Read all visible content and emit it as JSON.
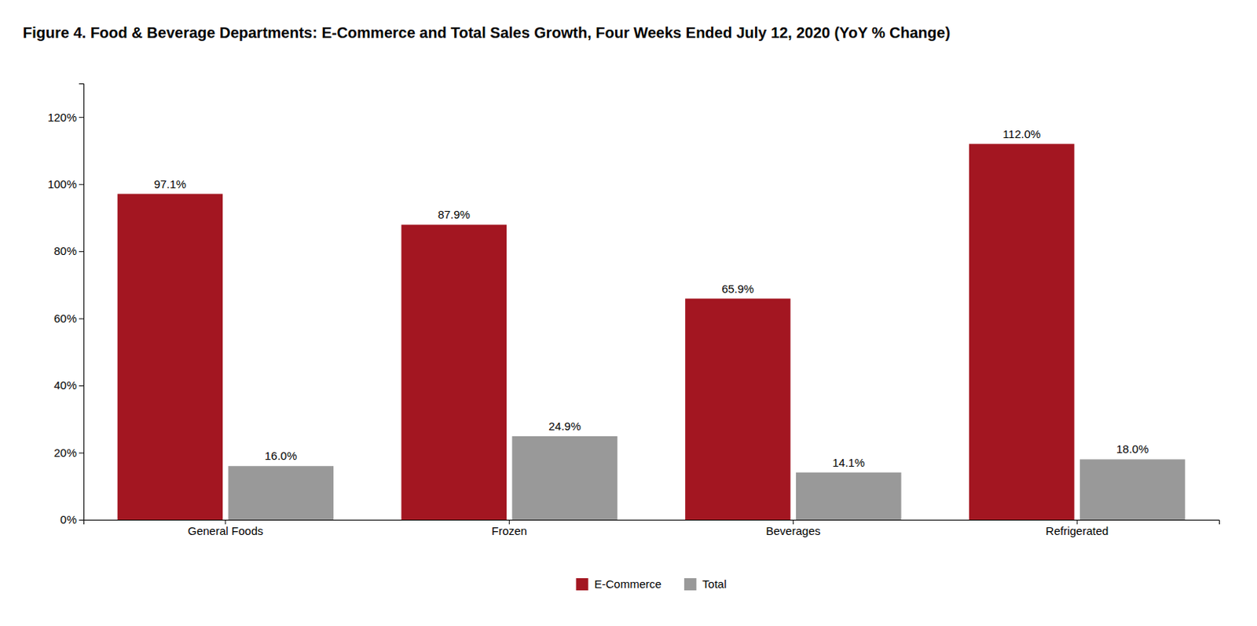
{
  "chart_data": {
    "type": "bar",
    "title": "Figure 4. Food & Beverage Departments: E-Commerce and Total Sales Growth, Four Weeks Ended July 12, 2020 (YoY % Change)",
    "categories": [
      "General Foods",
      "Frozen",
      "Beverages",
      "Refrigerated"
    ],
    "series": [
      {
        "name": "E-Commerce",
        "color": "#A31621",
        "values": [
          97.1,
          87.9,
          65.9,
          112.0
        ],
        "value_labels": [
          "97.1%",
          "87.9%",
          "65.9%",
          "112.0%"
        ]
      },
      {
        "name": "Total",
        "color": "#999999",
        "values": [
          16.0,
          24.9,
          14.1,
          18.0
        ],
        "value_labels": [
          "16.0%",
          "24.9%",
          "14.1%",
          "18.0%"
        ]
      }
    ],
    "ylim": [
      0,
      130
    ],
    "yticks": [
      {
        "value": 0,
        "label": "0%"
      },
      {
        "value": 20,
        "label": "20%"
      },
      {
        "value": 40,
        "label": "40%"
      },
      {
        "value": 60,
        "label": "60%"
      },
      {
        "value": 80,
        "label": "80%"
      },
      {
        "value": 100,
        "label": "100%"
      },
      {
        "value": 120,
        "label": "120%"
      }
    ],
    "grid": false,
    "legend": "bottom",
    "data_labels": true
  }
}
